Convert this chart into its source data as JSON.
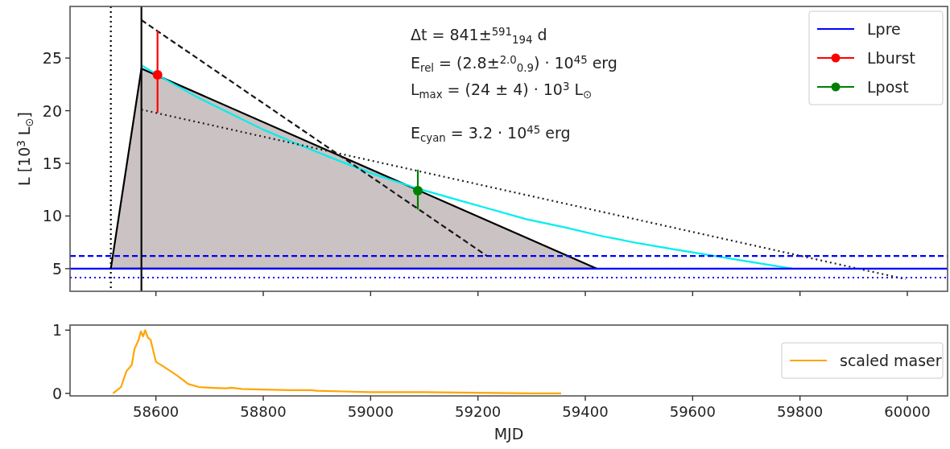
{
  "chart_data": [
    {
      "type": "line",
      "ylabel": "L [10$^{3}$ L$_{⊙}$]",
      "xlim": [
        58440,
        60075
      ],
      "ylim": [
        2.85,
        29.9
      ],
      "xticks": [
        58600,
        58800,
        59000,
        59200,
        59400,
        59600,
        59800,
        60000
      ],
      "yticks": [
        5,
        10,
        15,
        20,
        25
      ],
      "tick_labels": "y",
      "grid": false,
      "legend": "top right",
      "annotations": [
        "Δt = 841±$^{591}$$_{194}$ d",
        "E$_{rel}$ = (2.8±$^{2.0}$$_{0.9}$) · 10$^{45}$ erg",
        "L$_{max}$ = (24 ± 4) · 10$^{3}$ L$_{⊙}$",
        "E$_{cyan}$ = 3.2 · 10$^{45}$ erg"
      ],
      "ref_lines": [
        {
          "axis": "y",
          "value": 6.2,
          "color": "#0000ff",
          "line_style": "dashed"
        },
        {
          "axis": "y",
          "value": 4.15,
          "color": "#0000ff",
          "line_style": "dotted"
        },
        {
          "axis": "x",
          "value": 58516,
          "color": "#000000",
          "line_style": "dotted"
        },
        {
          "axis": "x",
          "value": 58573,
          "color": "#080808",
          "line_style": "solid"
        }
      ],
      "series": [
        {
          "type": "area",
          "color": "#cbc3c3",
          "line_style": "solid",
          "x": [
            58516,
            58573,
            59421
          ],
          "values": [
            5,
            24,
            5
          ]
        },
        {
          "type": "line",
          "color": "#00eeee",
          "line_style": "solid",
          "x": [
            58573,
            58620,
            58680,
            58740,
            58800,
            58870,
            58943,
            59010,
            59088,
            59150,
            59220,
            59290,
            59364,
            59430,
            59500,
            59570,
            59630,
            59700,
            59786
          ],
          "values": [
            24.3,
            22.9,
            21.2,
            19.7,
            18.2,
            16.7,
            15.2,
            13.9,
            12.6,
            11.7,
            10.7,
            9.7,
            8.9,
            8.1,
            7.4,
            6.8,
            6.3,
            5.7,
            5.0
          ]
        },
        {
          "type": "line",
          "color": "#181818",
          "line_style": "dashed",
          "x": [
            58573,
            59217
          ],
          "values": [
            28.6,
            6.2
          ]
        },
        {
          "type": "line",
          "color": "#202020",
          "line_style": "dotted",
          "x": [
            58573,
            59997
          ],
          "values": [
            20.1,
            4.0
          ]
        },
        {
          "type": "line",
          "name": "Lpre",
          "color": "#0000ff",
          "line_style": "solid",
          "x": [
            58440,
            60075
          ],
          "values": [
            5,
            5
          ]
        },
        {
          "type": "scatter",
          "name": "Lburst",
          "color": "#ff0000",
          "marker": "circle",
          "x": [
            58603
          ],
          "values": [
            23.4
          ],
          "errors": [
            [
              19.8,
              27.6
            ]
          ]
        },
        {
          "type": "scatter",
          "name": "Lpost",
          "color": "#008000",
          "marker": "circle",
          "x": [
            59088
          ],
          "values": [
            12.4
          ],
          "errors": [
            [
              10.6,
              14.4
            ]
          ]
        }
      ]
    },
    {
      "type": "line",
      "xlabel": "MJD",
      "xlim": [
        58440,
        60075
      ],
      "ylim": [
        -0.04,
        1.08
      ],
      "xticks": [
        58600,
        58800,
        59000,
        59200,
        59400,
        59600,
        59800,
        60000
      ],
      "yticks": [
        0,
        1
      ],
      "grid": false,
      "legend": "right",
      "series": [
        {
          "type": "line",
          "name": "scaled maser",
          "color": "#ffa500",
          "line_style": "solid",
          "x": [
            58520,
            58535,
            58545,
            58555,
            58560,
            58568,
            58572,
            58576,
            58580,
            58585,
            58590,
            58600,
            58615,
            58640,
            58660,
            58680,
            58700,
            58730,
            58740,
            58760,
            58800,
            58850,
            58890,
            58900,
            58950,
            59000,
            59100,
            59200,
            59300,
            59355
          ],
          "values": [
            0.0,
            0.1,
            0.35,
            0.45,
            0.7,
            0.85,
            0.98,
            0.9,
            1.0,
            0.88,
            0.85,
            0.5,
            0.42,
            0.28,
            0.15,
            0.1,
            0.09,
            0.08,
            0.09,
            0.07,
            0.06,
            0.05,
            0.05,
            0.04,
            0.03,
            0.02,
            0.02,
            0.01,
            0.0,
            0.0
          ]
        }
      ]
    }
  ]
}
